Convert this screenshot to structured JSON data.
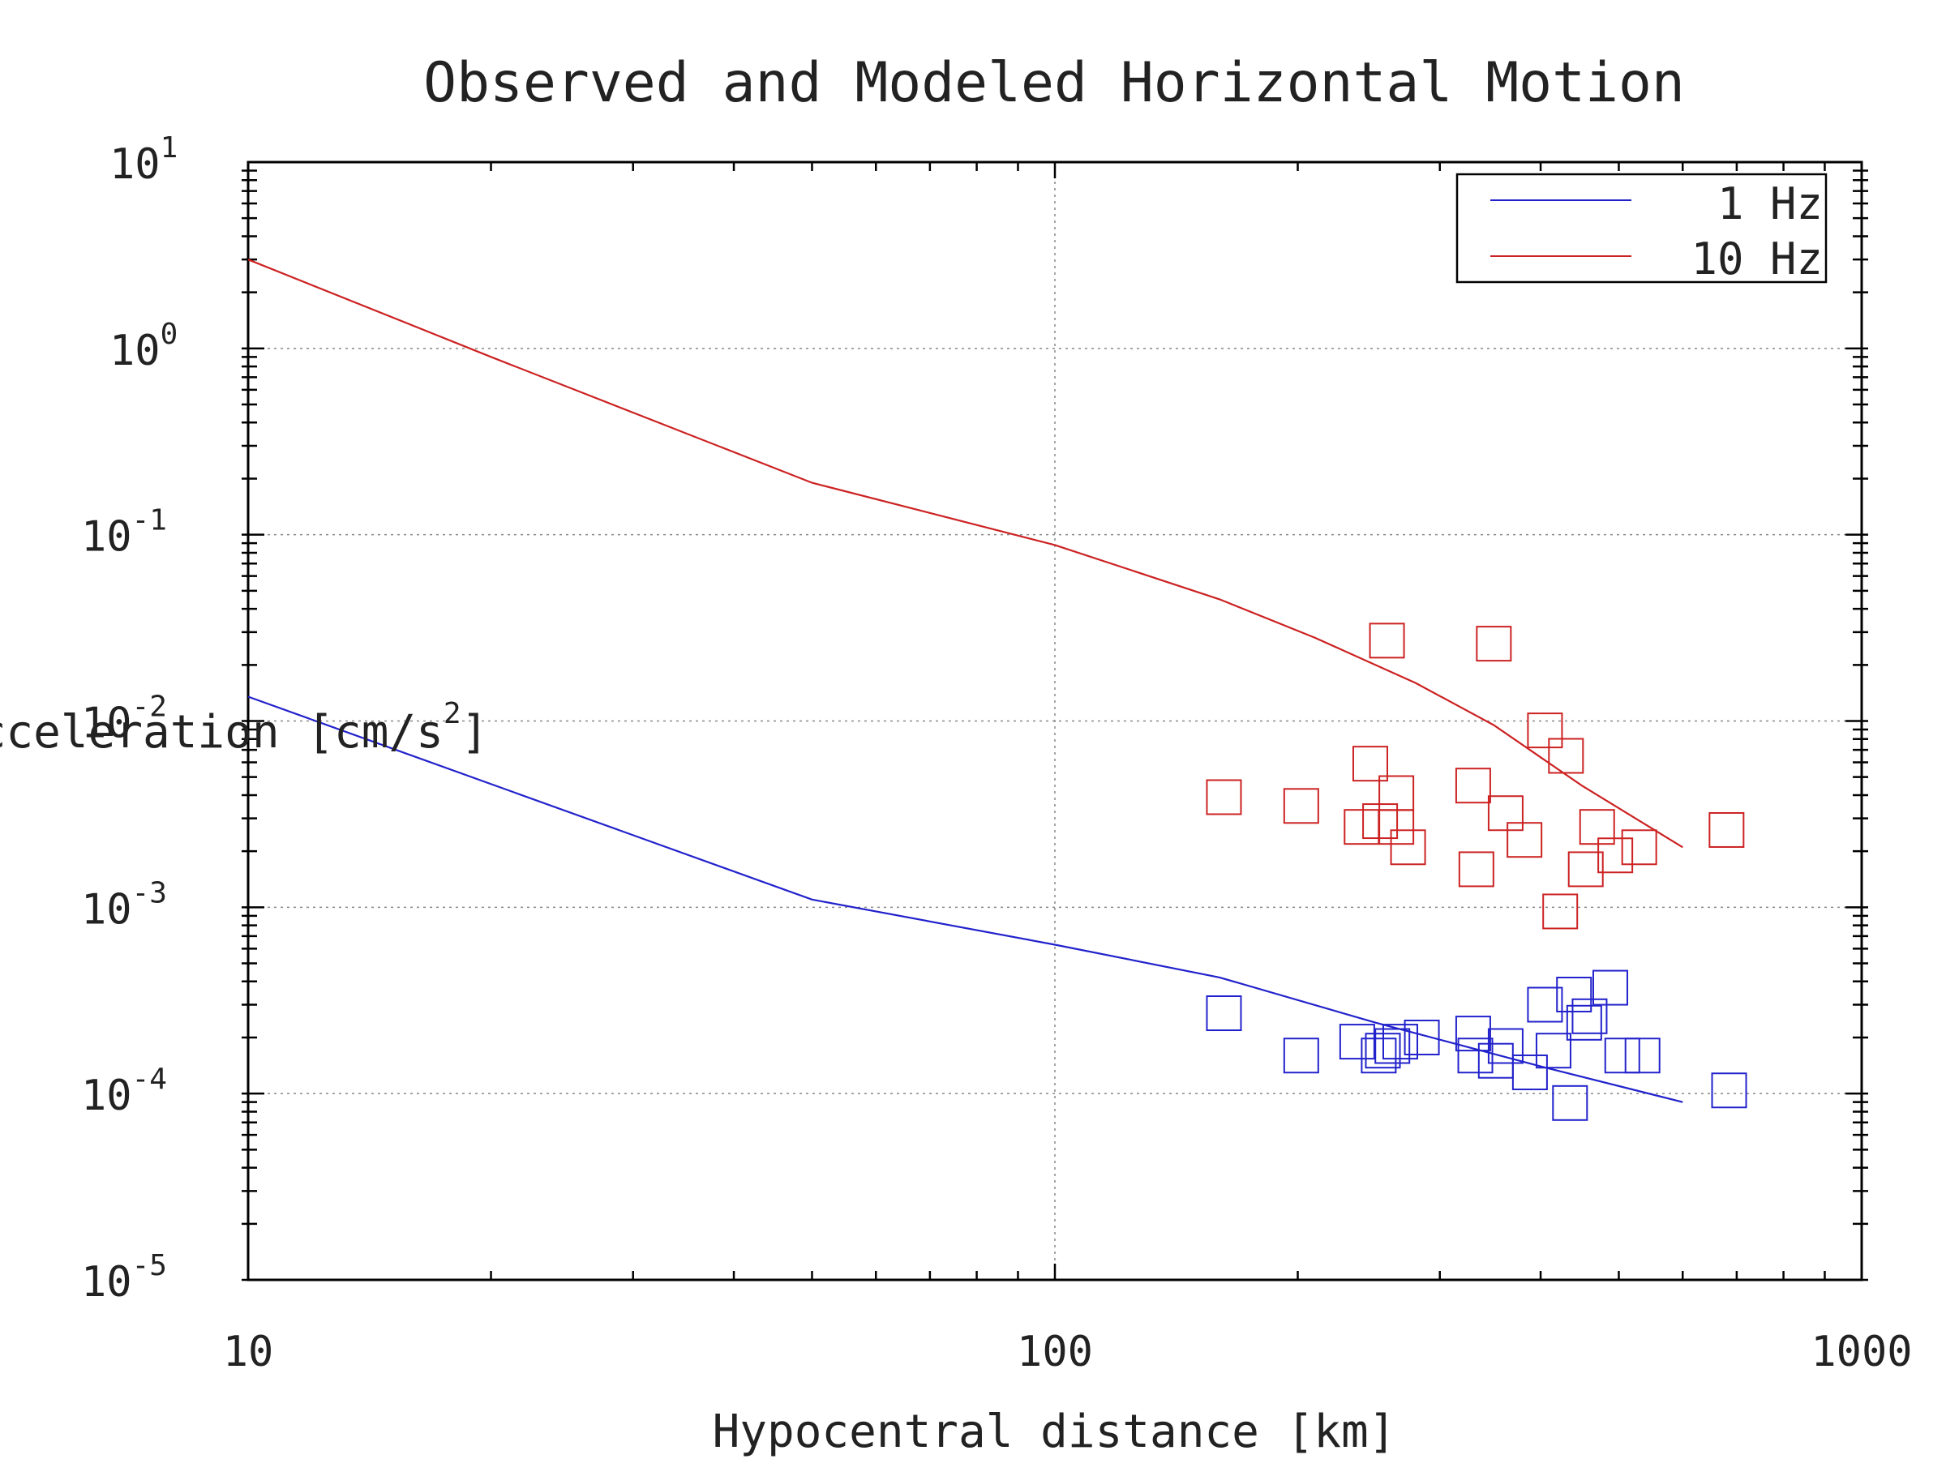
{
  "chart_data": {
    "type": "scatter",
    "title": "Observed and Modeled Horizontal Motion",
    "xlabel": "Hypocentral distance [km]",
    "ylabel": "Acceleration [cm/s",
    "ylabel_exp": "2",
    "ylabel_close": "]",
    "x_scale": "log",
    "y_scale": "log",
    "xlim": [
      10,
      1000
    ],
    "ylim": [
      1e-05,
      10
    ],
    "grid": true,
    "legend_position": "top-right",
    "x_ticks": [
      {
        "value": 10,
        "label": "10"
      },
      {
        "value": 100,
        "label": "100"
      },
      {
        "value": 1000,
        "label": "1000"
      }
    ],
    "y_ticks": [
      {
        "value": 10,
        "base": "10",
        "exp": "1"
      },
      {
        "value": 1,
        "base": "10",
        "exp": "0"
      },
      {
        "value": 0.1,
        "base": "10",
        "exp": "-1"
      },
      {
        "value": 0.01,
        "base": "10",
        "exp": "-2"
      },
      {
        "value": 0.001,
        "base": "10",
        "exp": "-3"
      },
      {
        "value": 0.0001,
        "base": "10",
        "exp": "-4"
      },
      {
        "value": 1e-05,
        "base": "10",
        "exp": "-5"
      }
    ],
    "series": [
      {
        "name": "1 Hz",
        "kind": "line",
        "color": "#2222cc",
        "x": [
          10,
          50,
          100,
          160,
          250,
          400,
          600
        ],
        "y": [
          0.0135,
          0.0011,
          0.00063,
          0.00042,
          0.00024,
          0.00014,
          9e-05
        ]
      },
      {
        "name": "10 Hz",
        "kind": "line",
        "color": "#cc2222",
        "x": [
          10,
          20,
          50,
          100,
          160,
          210,
          280,
          350,
          450,
          600
        ],
        "y": [
          3.0,
          0.9,
          0.19,
          0.088,
          0.045,
          0.028,
          0.016,
          0.0095,
          0.0045,
          0.0021
        ]
      },
      {
        "name": "",
        "kind": "markers",
        "color": "#cc2222",
        "x": [
          162,
          202,
          258,
          350,
          246,
          265,
          240,
          330,
          362,
          405,
          274,
          253,
          265,
          333,
          382,
          430,
          495,
          455,
          470,
          530,
          680,
          423
        ],
        "y": [
          0.0039,
          0.0035,
          0.027,
          0.026,
          0.0059,
          0.0041,
          0.0027,
          0.0045,
          0.0032,
          0.0089,
          0.0021,
          0.0029,
          0.0027,
          0.0016,
          0.0023,
          0.0065,
          0.0019,
          0.0016,
          0.0027,
          0.0021,
          0.0026,
          0.00095
        ]
      },
      {
        "name": "",
        "kind": "markers",
        "color": "#2222cc",
        "x": [
          162,
          202,
          237,
          252,
          255,
          262,
          268,
          285,
          330,
          332,
          352,
          362,
          388,
          405,
          415,
          440,
          453,
          460,
          488,
          505,
          535,
          685,
          435
        ],
        "y": [
          0.00027,
          0.00016,
          0.00019,
          0.00016,
          0.00017,
          0.00018,
          0.00019,
          0.0002,
          0.00021,
          0.00016,
          0.00015,
          0.00018,
          0.00013,
          0.0003,
          0.00017,
          0.00034,
          0.00024,
          0.00026,
          0.00037,
          0.00016,
          0.00016,
          0.000104,
          8.9e-05
        ]
      }
    ]
  }
}
